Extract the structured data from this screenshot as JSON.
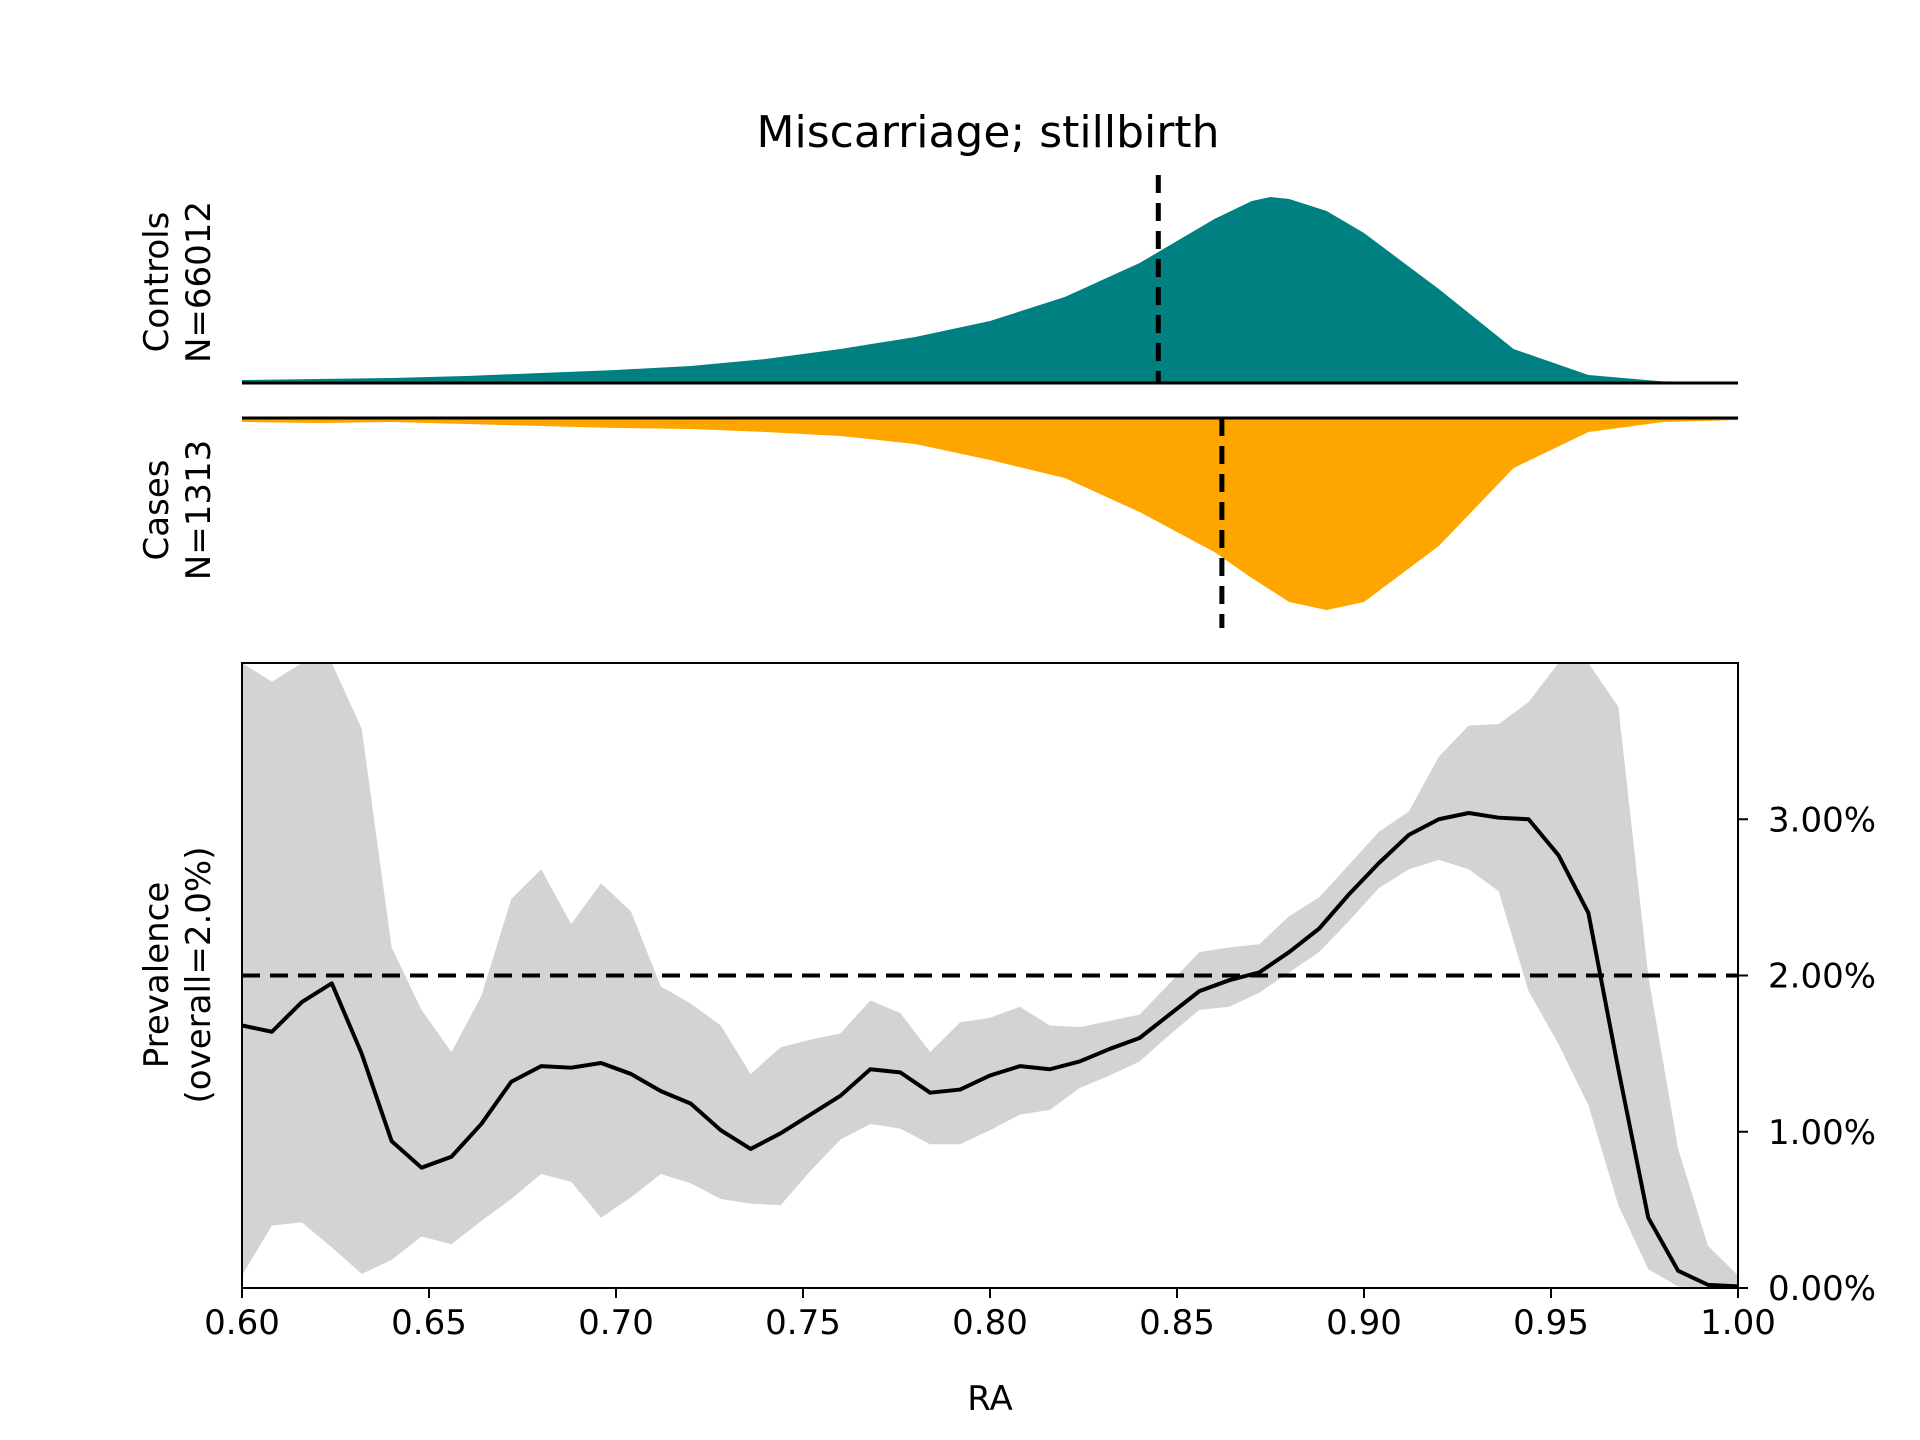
{
  "chart_data": [
    {
      "panel": "controls-density",
      "type": "area",
      "title": "Miscarriage; stillbirth",
      "ylabel_lines": [
        "Controls",
        "N=66012"
      ],
      "color": "#008080",
      "mean_marker": 0.845,
      "x": [
        0.6,
        0.62,
        0.64,
        0.66,
        0.68,
        0.7,
        0.72,
        0.74,
        0.76,
        0.78,
        0.8,
        0.82,
        0.84,
        0.86,
        0.87,
        0.875,
        0.88,
        0.89,
        0.9,
        0.92,
        0.94,
        0.96,
        0.98,
        1.0
      ],
      "density": [
        0.015,
        0.02,
        0.025,
        0.035,
        0.05,
        0.065,
        0.085,
        0.12,
        0.17,
        0.23,
        0.31,
        0.43,
        0.6,
        0.82,
        0.91,
        0.93,
        0.92,
        0.86,
        0.75,
        0.47,
        0.17,
        0.04,
        0.008,
        0.004
      ]
    },
    {
      "panel": "cases-density",
      "type": "area",
      "ylabel_lines": [
        "Cases",
        "N=1313"
      ],
      "color": "#FFA500",
      "mean_marker": 0.862,
      "x": [
        0.6,
        0.62,
        0.64,
        0.66,
        0.68,
        0.7,
        0.72,
        0.74,
        0.76,
        0.78,
        0.8,
        0.82,
        0.84,
        0.86,
        0.87,
        0.88,
        0.89,
        0.9,
        0.92,
        0.94,
        0.96,
        0.98,
        1.0
      ],
      "density": [
        0.02,
        0.025,
        0.02,
        0.03,
        0.04,
        0.05,
        0.055,
        0.07,
        0.09,
        0.13,
        0.21,
        0.3,
        0.47,
        0.67,
        0.8,
        0.92,
        0.96,
        0.92,
        0.64,
        0.25,
        0.07,
        0.02,
        0.01
      ]
    },
    {
      "panel": "prevalence",
      "type": "line",
      "xlabel": "RA",
      "ylabel_lines": [
        "Prevalence",
        "(overall=2.0%)"
      ],
      "xlim": [
        0.6,
        1.0
      ],
      "ylim": [
        0.0,
        0.04
      ],
      "x_ticks": [
        0.6,
        0.65,
        0.7,
        0.75,
        0.8,
        0.85,
        0.9,
        0.95,
        1.0
      ],
      "x_tick_labels": [
        "0.60",
        "0.65",
        "0.70",
        "0.75",
        "0.80",
        "0.85",
        "0.90",
        "0.95",
        "1.00"
      ],
      "y_ticks": [
        0.0,
        0.01,
        0.02,
        0.03
      ],
      "y_tick_labels": [
        "0.00%",
        "1.00%",
        "2.00%",
        "3.00%"
      ],
      "y_axis_side": "right",
      "overall_line": 0.02,
      "band_color": "#d3d3d3",
      "line_color": "#000000",
      "x": [
        0.6,
        0.608,
        0.616,
        0.624,
        0.632,
        0.64,
        0.648,
        0.656,
        0.664,
        0.672,
        0.68,
        0.688,
        0.696,
        0.704,
        0.712,
        0.72,
        0.728,
        0.736,
        0.744,
        0.752,
        0.76,
        0.768,
        0.776,
        0.784,
        0.792,
        0.8,
        0.808,
        0.816,
        0.824,
        0.832,
        0.84,
        0.848,
        0.856,
        0.864,
        0.872,
        0.88,
        0.888,
        0.896,
        0.904,
        0.912,
        0.92,
        0.928,
        0.936,
        0.944,
        0.952,
        0.96,
        0.968,
        0.976,
        0.984,
        0.992,
        1.0
      ],
      "prevalence": [
        0.0168,
        0.0164,
        0.0183,
        0.0195,
        0.015,
        0.0094,
        0.0077,
        0.0084,
        0.0105,
        0.0132,
        0.0142,
        0.0141,
        0.0144,
        0.0137,
        0.0126,
        0.0118,
        0.0101,
        0.0089,
        0.0099,
        0.0111,
        0.0123,
        0.014,
        0.0138,
        0.0125,
        0.0127,
        0.0136,
        0.0142,
        0.014,
        0.0145,
        0.0153,
        0.016,
        0.0175,
        0.019,
        0.0197,
        0.0202,
        0.0215,
        0.023,
        0.0252,
        0.0272,
        0.029,
        0.03,
        0.0304,
        0.0301,
        0.03,
        0.0277,
        0.024,
        0.014,
        0.0045,
        0.0011,
        0.0002,
        0.0001
      ],
      "lower": [
        0.0008,
        0.004,
        0.0042,
        0.0026,
        0.0009,
        0.0018,
        0.0033,
        0.0028,
        0.0043,
        0.0057,
        0.0073,
        0.0068,
        0.0045,
        0.0058,
        0.0073,
        0.0067,
        0.0057,
        0.0054,
        0.0053,
        0.0075,
        0.0095,
        0.0105,
        0.0102,
        0.0092,
        0.0092,
        0.0101,
        0.0111,
        0.0114,
        0.0128,
        0.0136,
        0.0145,
        0.0162,
        0.0178,
        0.018,
        0.0189,
        0.0202,
        0.0215,
        0.0235,
        0.0256,
        0.0268,
        0.0274,
        0.0268,
        0.0254,
        0.019,
        0.0156,
        0.0117,
        0.0053,
        0.0012,
        0.0001,
        0.0,
        0.0
      ],
      "upper": [
        0.04,
        0.0388,
        0.04,
        0.04,
        0.0358,
        0.0218,
        0.0178,
        0.0151,
        0.0187,
        0.0249,
        0.0268,
        0.0233,
        0.0259,
        0.0241,
        0.0193,
        0.0182,
        0.0168,
        0.0137,
        0.0154,
        0.0159,
        0.0163,
        0.0184,
        0.0176,
        0.0151,
        0.017,
        0.0173,
        0.018,
        0.0168,
        0.0167,
        0.0171,
        0.0175,
        0.0195,
        0.0215,
        0.0218,
        0.022,
        0.0238,
        0.025,
        0.0271,
        0.0292,
        0.0305,
        0.034,
        0.036,
        0.0361,
        0.0375,
        0.04,
        0.04,
        0.0372,
        0.02,
        0.0089,
        0.0027,
        0.0008
      ]
    }
  ]
}
